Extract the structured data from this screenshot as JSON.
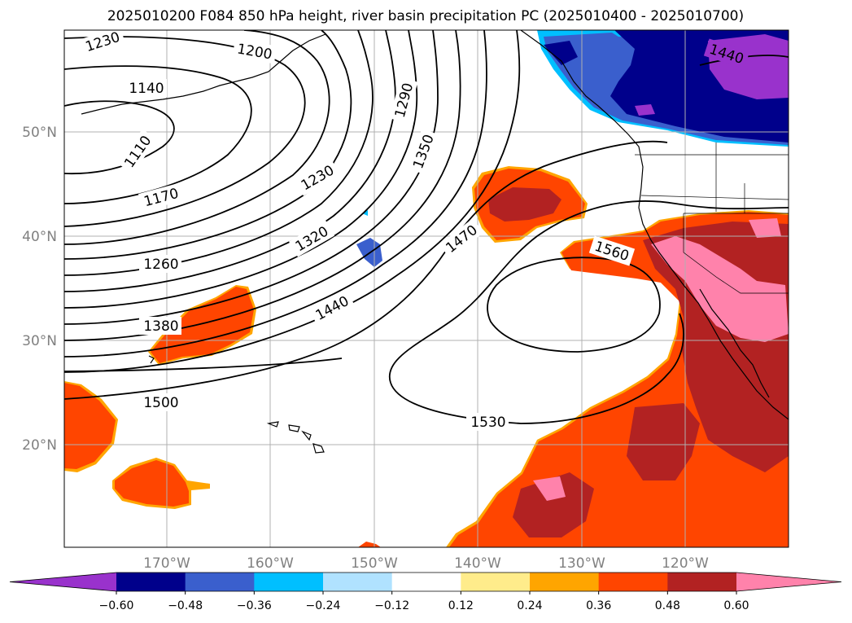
{
  "title": "2025010200 F084 850 hPa height, river basin precipitation PC (2025010400 - 2025010700)",
  "lat_labels": [
    "50°N",
    "40°N",
    "30°N",
    "20°N"
  ],
  "lon_labels": [
    "170°W",
    "160°W",
    "150°W",
    "140°W",
    "130°W",
    "120°W"
  ],
  "contour_labels": [
    "1230",
    "1200",
    "1140",
    "1110",
    "1290",
    "1350",
    "1230",
    "1170",
    "1320",
    "1470",
    "1260",
    "1560",
    "1440",
    "1380",
    "1500",
    "1530",
    "1440"
  ],
  "colorbar": {
    "ticks": [
      "−0.60",
      "−0.48",
      "−0.36",
      "−0.24",
      "−0.12",
      "0.12",
      "0.24",
      "0.36",
      "0.48",
      "0.60"
    ],
    "colors": [
      "#9932cc",
      "#00008b",
      "#3a5fcd",
      "#00bfff",
      "#b0e2ff",
      "#ffffff",
      "#ffec8b",
      "#ffa500",
      "#ff4500",
      "#b22222",
      "#ff82ab"
    ]
  }
}
